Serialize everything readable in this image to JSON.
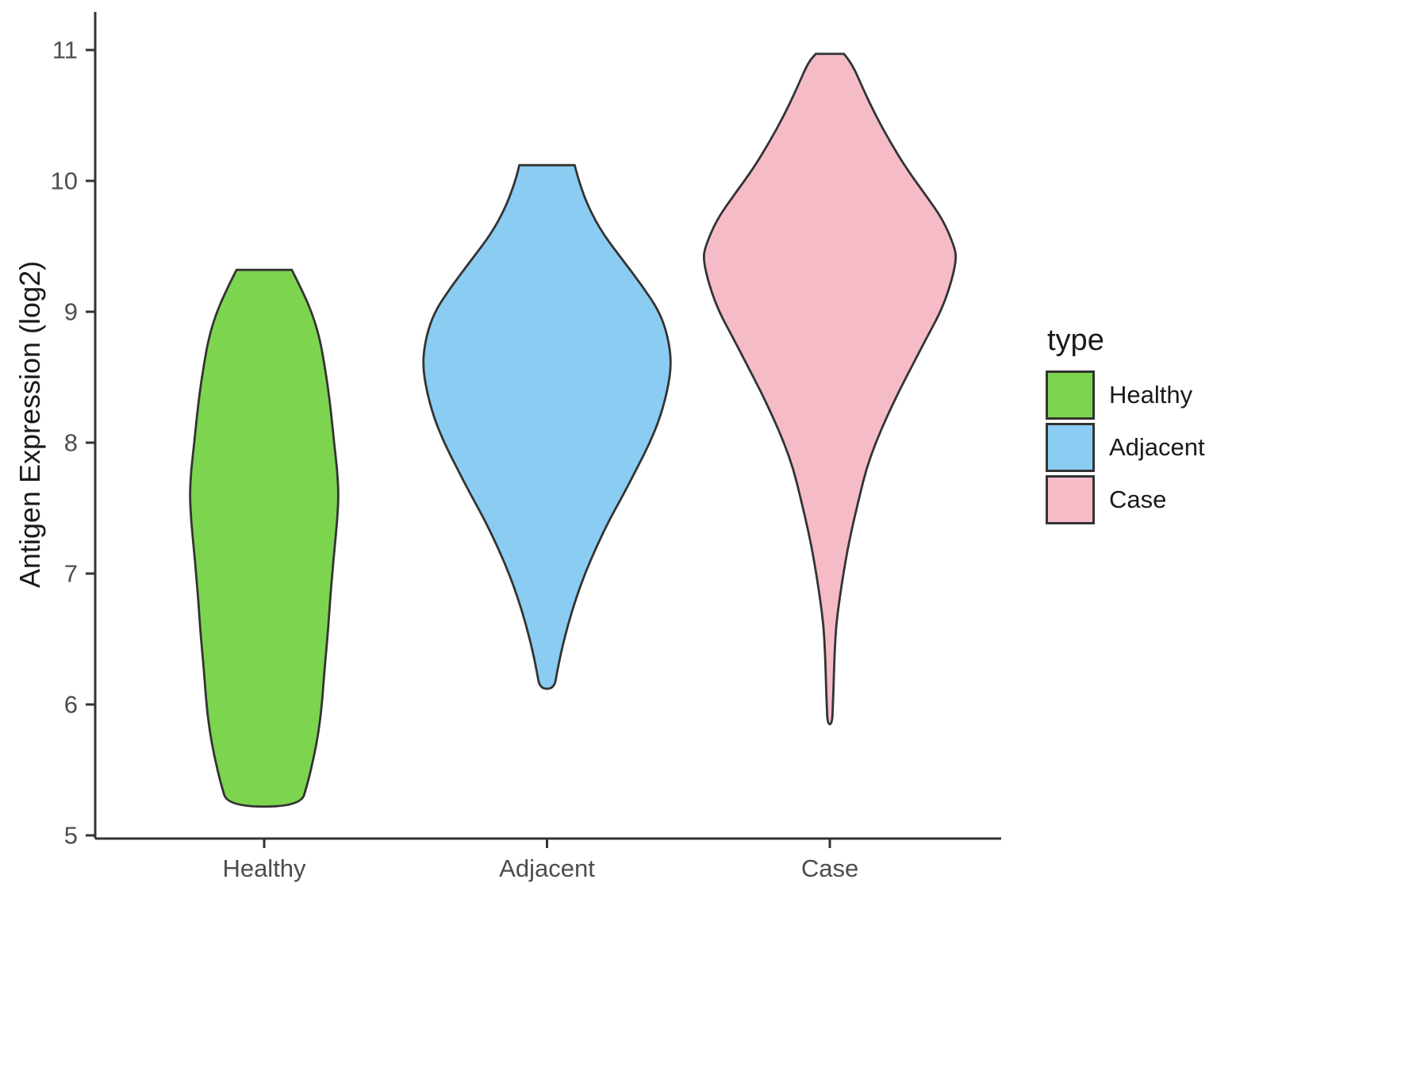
{
  "chart_data": {
    "type": "violin",
    "title": "",
    "xlabel": "",
    "ylabel": "Antigen Expression (log2)",
    "categories": [
      "Healthy",
      "Adjacent",
      "Case"
    ],
    "ylim": [
      5,
      11.2
    ],
    "yticks": [
      5,
      6,
      7,
      8,
      9,
      10,
      11
    ],
    "grid": false,
    "legend": {
      "title": "type",
      "position": "right",
      "items": [
        {
          "label": "Healthy",
          "color": "#7DD54F"
        },
        {
          "label": "Adjacent",
          "color": "#8BCDF2"
        },
        {
          "label": "Case",
          "color": "#F5BCC8"
        }
      ]
    },
    "colors": {
      "axis": "#333333",
      "tick_text": "#4d4d4d",
      "outline": "#333333"
    },
    "series": [
      {
        "name": "Healthy",
        "x": 1,
        "fill": "#7DD54F",
        "y_min": 5.22,
        "y_max": 9.32,
        "profile": [
          [
            9.32,
            0.098
          ],
          [
            9.2,
            0.126
          ],
          [
            9.0,
            0.168
          ],
          [
            8.8,
            0.196
          ],
          [
            8.6,
            0.213
          ],
          [
            8.4,
            0.227
          ],
          [
            8.2,
            0.238
          ],
          [
            8.0,
            0.247
          ],
          [
            7.8,
            0.258
          ],
          [
            7.6,
            0.263
          ],
          [
            7.4,
            0.258
          ],
          [
            7.2,
            0.249
          ],
          [
            7.0,
            0.241
          ],
          [
            6.8,
            0.233
          ],
          [
            6.6,
            0.227
          ],
          [
            6.4,
            0.219
          ],
          [
            6.2,
            0.211
          ],
          [
            6.0,
            0.204
          ],
          [
            5.8,
            0.193
          ],
          [
            5.6,
            0.176
          ],
          [
            5.4,
            0.154
          ],
          [
            5.22,
            0.129
          ]
        ]
      },
      {
        "name": "Adjacent",
        "x": 2,
        "fill": "#8BCDF2",
        "y_min": 6.12,
        "y_max": 10.12,
        "profile": [
          [
            10.12,
            0.098
          ],
          [
            10.0,
            0.112
          ],
          [
            9.8,
            0.146
          ],
          [
            9.6,
            0.196
          ],
          [
            9.4,
            0.266
          ],
          [
            9.2,
            0.336
          ],
          [
            9.0,
            0.398
          ],
          [
            8.8,
            0.429
          ],
          [
            8.6,
            0.44
          ],
          [
            8.4,
            0.426
          ],
          [
            8.2,
            0.401
          ],
          [
            8.0,
            0.364
          ],
          [
            7.8,
            0.317
          ],
          [
            7.6,
            0.269
          ],
          [
            7.4,
            0.218
          ],
          [
            7.2,
            0.174
          ],
          [
            7.0,
            0.134
          ],
          [
            6.8,
            0.101
          ],
          [
            6.6,
            0.073
          ],
          [
            6.4,
            0.05
          ],
          [
            6.25,
            0.036
          ],
          [
            6.12,
            0.025
          ]
        ]
      },
      {
        "name": "Case",
        "x": 3,
        "fill": "#F5BCC8",
        "y_min": 5.85,
        "y_max": 10.97,
        "profile": [
          [
            10.97,
            0.05
          ],
          [
            10.9,
            0.078
          ],
          [
            10.7,
            0.118
          ],
          [
            10.5,
            0.162
          ],
          [
            10.3,
            0.213
          ],
          [
            10.1,
            0.269
          ],
          [
            9.9,
            0.336
          ],
          [
            9.7,
            0.401
          ],
          [
            9.5,
            0.44
          ],
          [
            9.4,
            0.448
          ],
          [
            9.2,
            0.426
          ],
          [
            9.0,
            0.392
          ],
          [
            8.8,
            0.342
          ],
          [
            8.6,
            0.294
          ],
          [
            8.4,
            0.246
          ],
          [
            8.2,
            0.202
          ],
          [
            8.0,
            0.162
          ],
          [
            7.8,
            0.129
          ],
          [
            7.6,
            0.106
          ],
          [
            7.4,
            0.084
          ],
          [
            7.2,
            0.064
          ],
          [
            7.0,
            0.048
          ],
          [
            6.8,
            0.034
          ],
          [
            6.6,
            0.022
          ],
          [
            6.4,
            0.017
          ],
          [
            6.2,
            0.014
          ],
          [
            6.0,
            0.011
          ],
          [
            5.85,
            0.008
          ]
        ]
      }
    ]
  }
}
